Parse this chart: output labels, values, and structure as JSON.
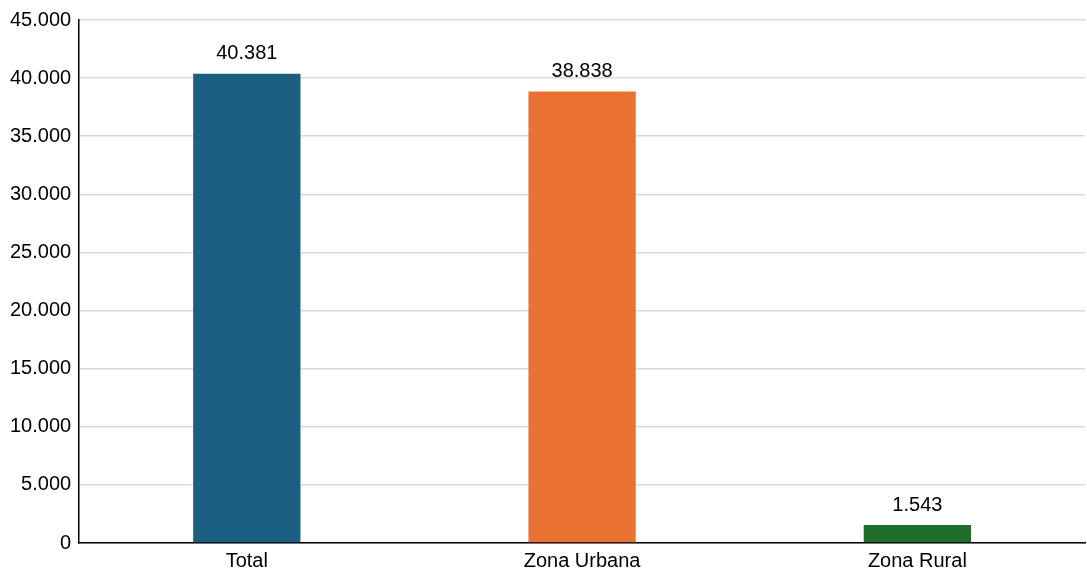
{
  "chart_data": {
    "type": "bar",
    "categories": [
      "Total",
      "Zona Urbana",
      "Zona Rural"
    ],
    "values": [
      40381,
      38838,
      1543
    ],
    "colors": [
      "#1b5f81",
      "#e97132",
      "#1e6e27"
    ],
    "value_labels": [
      "40.381",
      "38.838",
      "1.543"
    ],
    "ylim": [
      0,
      45000
    ],
    "yticks": [
      0,
      {
        "value": 5000,
        "label": "5.000"
      },
      {
        "value": 10000,
        "label": "10.000"
      },
      {
        "value": 15000,
        "label": "15.000"
      },
      {
        "value": 20000,
        "label": "20.000"
      },
      {
        "value": 25000,
        "label": "25.000"
      },
      {
        "value": 30000,
        "label": "30.000"
      },
      {
        "value": 35000,
        "label": "35.000"
      },
      {
        "value": 40000,
        "label": "40.000"
      },
      {
        "value": 45000,
        "label": "45.000"
      }
    ],
    "grid": "y",
    "legend": false
  }
}
